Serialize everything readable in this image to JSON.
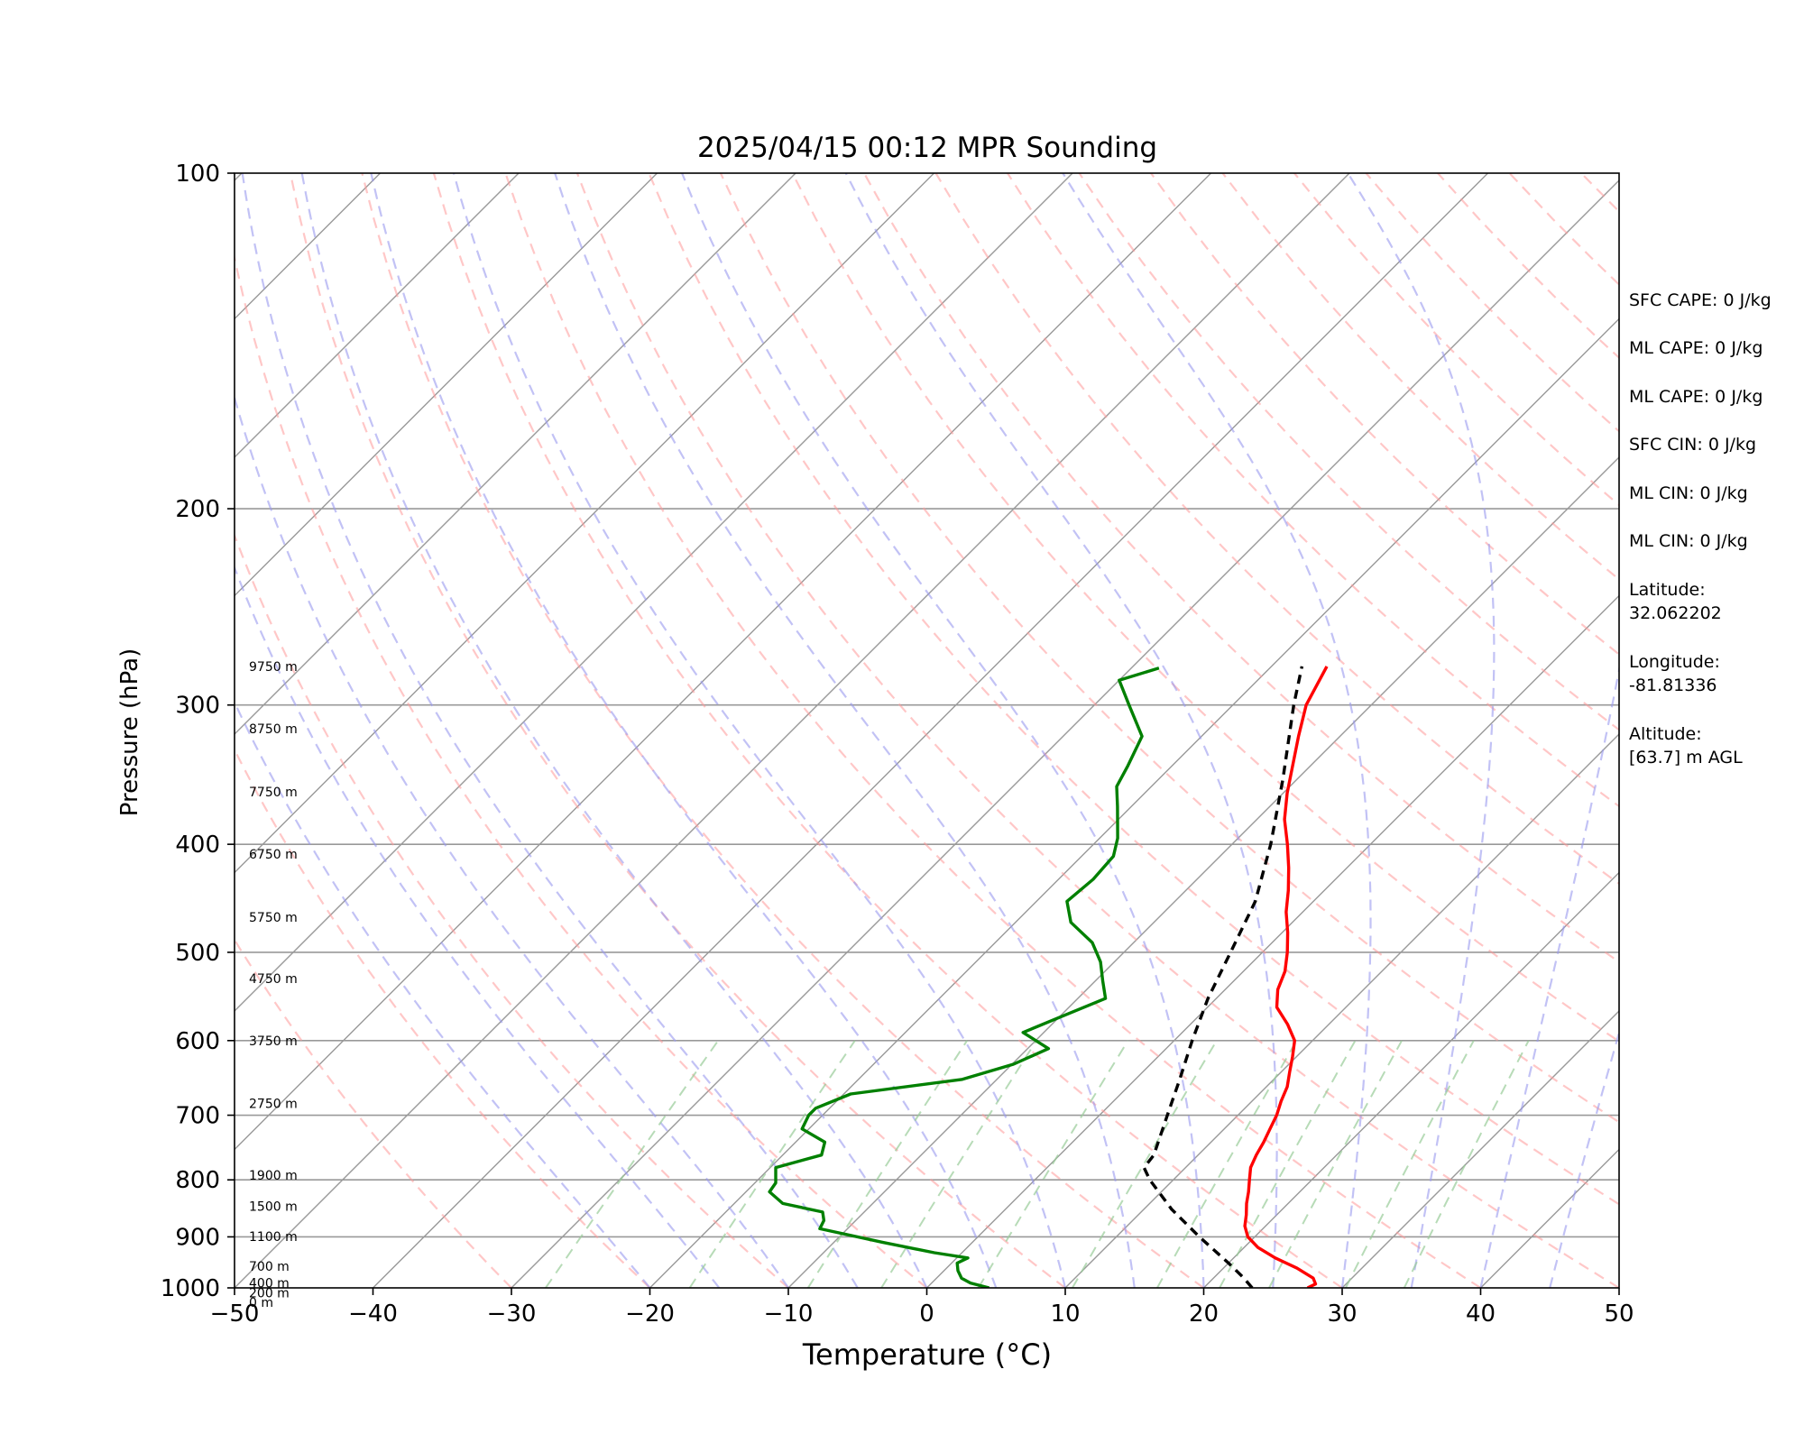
{
  "chart_data": {
    "type": "skew-t",
    "title": "2025/04/15 00:12 MPR Sounding",
    "xlabel": "Temperature (°C)",
    "ylabel": "Pressure (hPa)",
    "xlim": [
      -50,
      50
    ],
    "ylim": [
      1000,
      100
    ],
    "y_scale": "log",
    "grid": true,
    "x_ticks": [
      "−50",
      "−40",
      "−30",
      "−20",
      "−10",
      "0",
      "10",
      "20",
      "30",
      "40",
      "50"
    ],
    "y_ticks": [
      "100",
      "200",
      "300",
      "400",
      "500",
      "600",
      "700",
      "800",
      "900",
      "1000"
    ],
    "height_labels": [
      {
        "text": "9750 m",
        "pressure": 277
      },
      {
        "text": "8750 m",
        "pressure": 315
      },
      {
        "text": "7750 m",
        "pressure": 359
      },
      {
        "text": "6750 m",
        "pressure": 408
      },
      {
        "text": "5750 m",
        "pressure": 465
      },
      {
        "text": "4750 m",
        "pressure": 528
      },
      {
        "text": "3750 m",
        "pressure": 600
      },
      {
        "text": "2750 m",
        "pressure": 683
      },
      {
        "text": "1900 m",
        "pressure": 792
      },
      {
        "text": "1500 m",
        "pressure": 845
      },
      {
        "text": "1100 m",
        "pressure": 899
      },
      {
        "text": "700 m",
        "pressure": 956
      },
      {
        "text": "400 m",
        "pressure": 990
      },
      {
        "text": "200 m",
        "pressure": 1010
      },
      {
        "text": "0 m",
        "pressure": 1030
      }
    ],
    "series": [
      {
        "name": "Temperature",
        "color": "#ff0000",
        "points": [
          [
            1000,
            27.5
          ],
          [
            992,
            27.8
          ],
          [
            980,
            27.2
          ],
          [
            960,
            25.3
          ],
          [
            940,
            23.0
          ],
          [
            920,
            21.0
          ],
          [
            900,
            19.5
          ],
          [
            880,
            18.5
          ],
          [
            860,
            17.8
          ],
          [
            840,
            17.0
          ],
          [
            820,
            16.3
          ],
          [
            800,
            15.5
          ],
          [
            780,
            14.7
          ],
          [
            760,
            14.2
          ],
          [
            740,
            13.8
          ],
          [
            720,
            13.3
          ],
          [
            700,
            12.8
          ],
          [
            680,
            12.1
          ],
          [
            660,
            11.5
          ],
          [
            640,
            10.6
          ],
          [
            620,
            9.7
          ],
          [
            600,
            8.7
          ],
          [
            580,
            7.0
          ],
          [
            560,
            5.0
          ],
          [
            540,
            3.8
          ],
          [
            520,
            3.0
          ],
          [
            500,
            1.8
          ],
          [
            480,
            0.4
          ],
          [
            460,
            -1.2
          ],
          [
            440,
            -2.6
          ],
          [
            420,
            -4.2
          ],
          [
            400,
            -6.0
          ],
          [
            380,
            -8.0
          ],
          [
            360,
            -9.7
          ],
          [
            340,
            -11.3
          ],
          [
            320,
            -13.0
          ],
          [
            300,
            -14.7
          ],
          [
            277,
            -16.0
          ]
        ]
      },
      {
        "name": "Dewpoint",
        "color": "#008000",
        "points": [
          [
            1000,
            4.5
          ],
          [
            990,
            2.8
          ],
          [
            980,
            1.8
          ],
          [
            965,
            1.0
          ],
          [
            950,
            0.4
          ],
          [
            940,
            0.8
          ],
          [
            930,
            -2.0
          ],
          [
            910,
            -6.5
          ],
          [
            885,
            -12.0
          ],
          [
            870,
            -12.3
          ],
          [
            855,
            -13.0
          ],
          [
            840,
            -16.5
          ],
          [
            820,
            -18.3
          ],
          [
            805,
            -18.5
          ],
          [
            780,
            -19.6
          ],
          [
            760,
            -17.2
          ],
          [
            740,
            -17.9
          ],
          [
            720,
            -20.5
          ],
          [
            700,
            -21.0
          ],
          [
            690,
            -21.0
          ],
          [
            670,
            -19.5
          ],
          [
            650,
            -12.5
          ],
          [
            630,
            -9.9
          ],
          [
            610,
            -8.5
          ],
          [
            590,
            -11.5
          ],
          [
            570,
            -9.8
          ],
          [
            550,
            -8.0
          ],
          [
            530,
            -9.5
          ],
          [
            510,
            -11.0
          ],
          [
            490,
            -13.0
          ],
          [
            470,
            -16.0
          ],
          [
            450,
            -17.8
          ],
          [
            430,
            -17.5
          ],
          [
            410,
            -17.7
          ],
          [
            395,
            -18.7
          ],
          [
            370,
            -21.0
          ],
          [
            355,
            -22.5
          ],
          [
            340,
            -23.2
          ],
          [
            320,
            -24.3
          ],
          [
            300,
            -27.5
          ],
          [
            285,
            -30.0
          ],
          [
            278,
            -28.0
          ]
        ]
      },
      {
        "name": "Parcel",
        "color": "#000000",
        "points": [
          [
            1000,
            23.5
          ],
          [
            980,
            22.2
          ],
          [
            950,
            20.0
          ],
          [
            900,
            16.0
          ],
          [
            850,
            12.0
          ],
          [
            800,
            8.3
          ],
          [
            780,
            7.0
          ],
          [
            760,
            6.8
          ],
          [
            700,
            4.9
          ],
          [
            650,
            3.2
          ],
          [
            600,
            1.3
          ],
          [
            550,
            -0.6
          ],
          [
            500,
            -2.3
          ],
          [
            450,
            -4.2
          ],
          [
            400,
            -7.2
          ],
          [
            350,
            -11.0
          ],
          [
            300,
            -15.6
          ],
          [
            277,
            -17.8
          ]
        ]
      }
    ]
  },
  "side_panel": {
    "sfc_cape": "SFC CAPE: 0 J/kg",
    "ml_cape_1": "ML CAPE: 0 J/kg",
    "ml_cape_2": "ML CAPE: 0 J/kg",
    "sfc_cin": "SFC CIN: 0 J/kg",
    "ml_cin_1": "ML CIN: 0 J/kg",
    "ml_cin_2": "ML CIN: 0 J/kg",
    "latitude_label": "Latitude:",
    "latitude_value": "32.062202",
    "longitude_label": "Longitude:",
    "longitude_value": "-81.81336",
    "altitude_label": "Altitude:",
    "altitude_value": "[63.7] m AGL"
  },
  "colors": {
    "dry_adiabats": "#ff9999",
    "moist_adiabats": "#9999ee",
    "mixing_ratio": "#99cc99",
    "isotherms": "#999999"
  }
}
